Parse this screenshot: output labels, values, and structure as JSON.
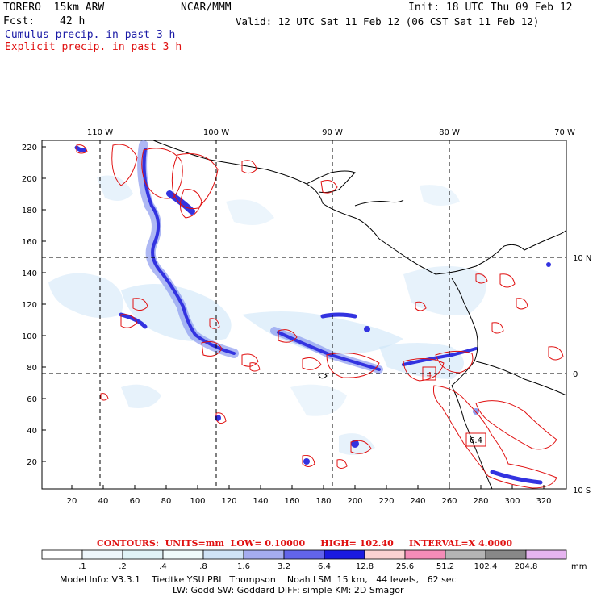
{
  "header": {
    "model": "TORERO  15km ARW",
    "org": "NCAR/MMM",
    "init": "Init: 18 UTC Thu 09 Feb 12",
    "fcst_label": "Fcst:",
    "fcst_hours": "42 h",
    "valid": "Valid: 12 UTC Sat 11 Feb 12 (06 CST Sat 11 Feb 12)",
    "cumulus_label": "Cumulus precip. in past 3 h",
    "explicit_label": "Explicit precip. in past 3 h"
  },
  "map": {
    "top_lon_labels": [
      "110 W",
      "100 W",
      "90 W",
      "80 W",
      "70 W"
    ],
    "right_lat_labels": [
      "10 N",
      "0",
      "10 S"
    ],
    "y_ticks": [
      "220",
      "200",
      "180",
      "160",
      "140",
      "120",
      "100",
      "80",
      "60",
      "40",
      "20"
    ],
    "x_ticks": [
      "20",
      "40",
      "60",
      "80",
      "100",
      "120",
      "140",
      "160",
      "180",
      "200",
      "220",
      "240",
      "260",
      "280",
      "300",
      "320"
    ],
    "box_labels": [
      "4",
      "6.4"
    ],
    "colors": {
      "coast": "#000000",
      "grid": "#000000",
      "contour": "#e01010",
      "precip_light": "#cfe6f8",
      "precip_mid": "#8c9af0",
      "precip_heavy": "#3333e0",
      "precip_dark": "#0000c8"
    }
  },
  "contours_line": {
    "label": "CONTOURS:",
    "units": "UNITS=mm",
    "low": "LOW= 0.10000",
    "high": "HIGH= 102.40",
    "interval": "INTERVAL=X 4.0000"
  },
  "legend": {
    "thresholds": [
      ".1",
      ".2",
      ".4",
      ".8",
      "1.6",
      "3.2",
      "6.4",
      "12.8",
      "25.6",
      "51.2",
      "102.4",
      "204.8"
    ],
    "unit": "mm",
    "colors": [
      "#ffffff",
      "#eef6fb",
      "#e0f2f6",
      "#f0fbfb",
      "#cfe3f6",
      "#a5acf0",
      "#6264ea",
      "#1a1ae0",
      "#fbd2d2",
      "#f58cb8",
      "#b4b4b4",
      "#888888",
      "#e6b4f0"
    ]
  },
  "model_info": {
    "line1": "Model Info: V3.3.1    Tiedtke YSU PBL  Thompson    Noah LSM  15 km,   44 levels,   62 sec",
    "line2": "LW: Godd SW: Goddard DIFF: simple KM: 2D Smagor"
  }
}
